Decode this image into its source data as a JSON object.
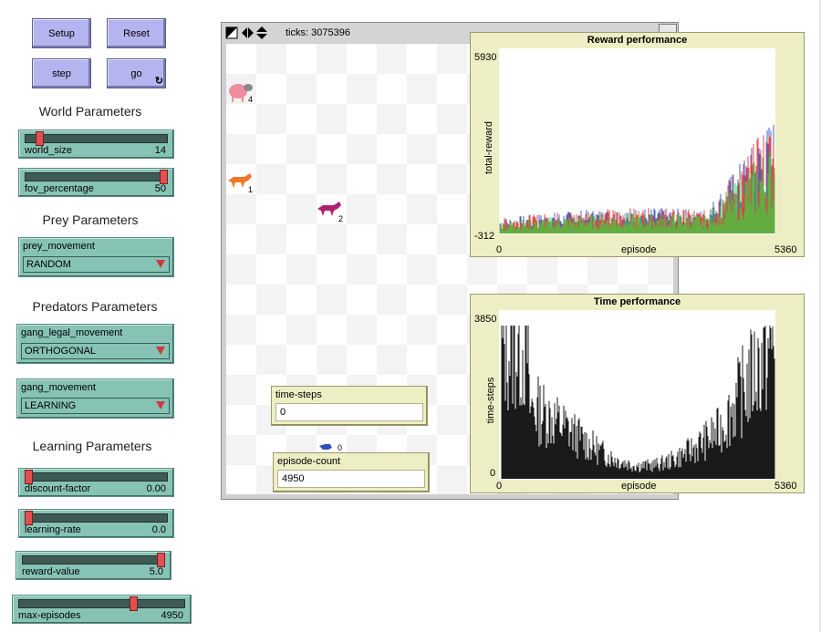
{
  "buttons": {
    "setup": "Setup",
    "reset": "Reset",
    "step": "step",
    "go": "go",
    "forever_glyph": "↻"
  },
  "sections": {
    "world": "World Parameters",
    "prey": "Prey Parameters",
    "predators": "Predators Parameters",
    "learning": "Learning Parameters"
  },
  "sliders": {
    "world_size": {
      "label": "world_size",
      "value": "14",
      "level": 0.08
    },
    "fov_percentage": {
      "label": "fov_percentage",
      "value": "50",
      "level": 1.0
    },
    "discount_factor": {
      "label": "discount-factor",
      "value": "0.00",
      "level": 0.0
    },
    "learning_rate": {
      "label": "learning-rate",
      "value": "0.0",
      "level": 0.0
    },
    "reward_value": {
      "label": "reward-value",
      "value": "5.0",
      "level": 1.0
    },
    "max_episodes": {
      "label": "max-episodes",
      "value": "4950",
      "level": 0.7
    }
  },
  "choosers": {
    "prey_movement": {
      "label": "prey_movement",
      "value": "RANDOM"
    },
    "gang_legal_movement": {
      "label": "gang_legal_movement",
      "value": "ORTHOGONAL"
    },
    "gang_movement": {
      "label": "gang_movement",
      "value": "LEARNING"
    }
  },
  "world": {
    "ticks_label": "ticks: 3075396",
    "agents": [
      {
        "name": "sheep",
        "number": "4",
        "color": "#f08ca0"
      },
      {
        "name": "wolf",
        "number": "1",
        "color": "#f07828"
      },
      {
        "name": "wolf",
        "number": "2",
        "color": "#b0206e"
      },
      {
        "name": "wolf",
        "number": "0",
        "color": "#3050c0"
      }
    ]
  },
  "monitors": {
    "time_steps": {
      "label": "time-steps",
      "value": "0"
    },
    "episode_count": {
      "label": "episode-count",
      "value": "4950"
    }
  },
  "plots": {
    "reward": {
      "title": "Reward performance",
      "ylabel": "total-reward",
      "xlabel": "episode",
      "ymax": "5930",
      "ymin": "-312",
      "xmin": "0",
      "xmax": "5360",
      "colors": [
        "#3050c0",
        "#e04040",
        "#58b840"
      ]
    },
    "time": {
      "title": "Time performance",
      "ylabel": "time-steps",
      "xlabel": "episode",
      "ymax": "3850",
      "ymin": "0",
      "xmin": "0",
      "xmax": "5360",
      "color": "#000000"
    }
  }
}
